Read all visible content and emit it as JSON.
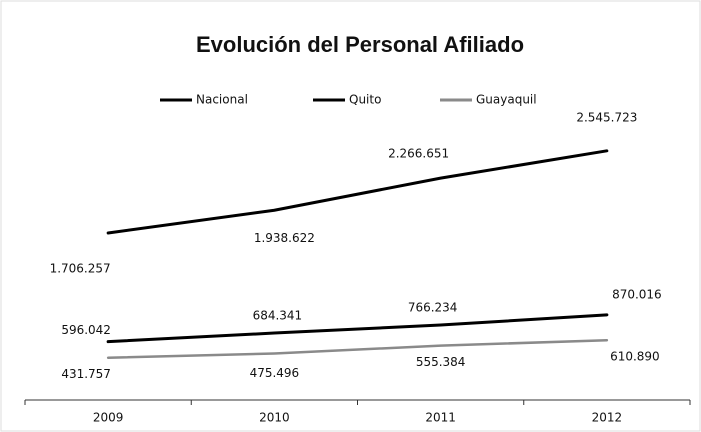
{
  "chart_data": {
    "type": "line",
    "title": "Evolución del Personal Afiliado",
    "categories": [
      "2009",
      "2010",
      "2011",
      "2012"
    ],
    "series": [
      {
        "name": "Nacional",
        "color": "#000000",
        "values": [
          1706257,
          1938622,
          2266651,
          2545723
        ],
        "value_labels": [
          "1.706.257",
          "1.938.622",
          "2.266.651",
          "2.545.723"
        ]
      },
      {
        "name": "Quito",
        "color": "#000000",
        "values": [
          596042,
          684341,
          766234,
          870016
        ],
        "value_labels": [
          "596.042",
          "684.341",
          "766.234",
          "870.016"
        ]
      },
      {
        "name": "Guayaquil",
        "color": "#8a8a8a",
        "values": [
          431757,
          475496,
          555384,
          610890
        ],
        "value_labels": [
          "431.757",
          "475.496",
          "555.384",
          "610.890"
        ]
      }
    ],
    "ylim": [
      0,
      3300000
    ],
    "legend": "top"
  }
}
